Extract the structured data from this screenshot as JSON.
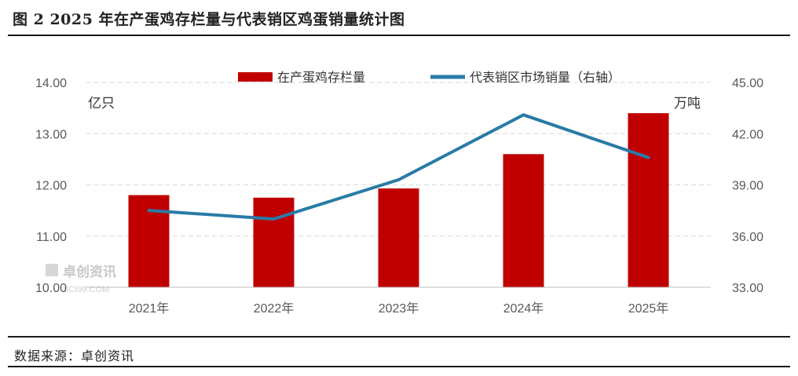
{
  "title": "图 2 2025 年在产蛋鸡存栏量与代表销区鸡蛋销量统计图",
  "source": "数据来源：卓创资讯",
  "watermark": {
    "name": "卓创资讯",
    "sub": "SCI99.COM"
  },
  "chart_data": {
    "type": "bar",
    "categories": [
      "2021年",
      "2022年",
      "2023年",
      "2024年",
      "2025年"
    ],
    "left_unit": "亿只",
    "right_unit": "万吨",
    "ylim": [
      10,
      14
    ],
    "y_ticks": [
      "10.00",
      "11.00",
      "12.00",
      "13.00",
      "14.00"
    ],
    "y2lim": [
      33,
      45
    ],
    "y2_ticks": [
      "33.00",
      "36.00",
      "39.00",
      "42.00",
      "45.00"
    ],
    "grid": true,
    "legend_position": "top",
    "series": [
      {
        "name": "在产蛋鸡存栏量",
        "type": "bar",
        "axis": "left",
        "color": "#c00000",
        "values": [
          11.8,
          11.75,
          11.93,
          12.6,
          13.4
        ]
      },
      {
        "name": "代表销区市场销量（右轴）",
        "type": "line",
        "axis": "right",
        "color": "#2a7ba6",
        "values": [
          37.5,
          37.0,
          39.3,
          43.1,
          40.6
        ]
      }
    ]
  }
}
